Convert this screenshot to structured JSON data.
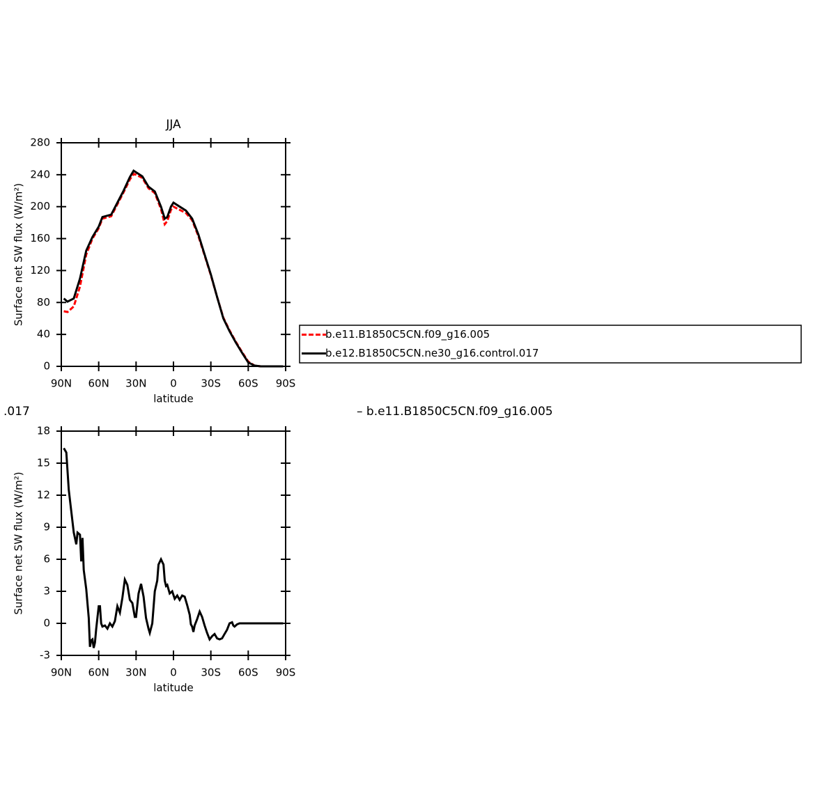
{
  "chart_data": [
    {
      "type": "line",
      "title": "JJA",
      "xlabel": "latitude",
      "ylabel": "Surface net SW flux (W/m²)",
      "x": [
        88,
        85,
        80,
        75,
        70,
        65,
        60,
        57,
        50,
        45,
        40,
        35,
        32,
        30,
        25,
        20,
        15,
        10,
        7,
        5,
        2,
        0,
        -5,
        -10,
        -15,
        -20,
        -25,
        -30,
        -35,
        -40,
        -45,
        -50,
        -55,
        -60,
        -65,
        -70,
        -80,
        -88
      ],
      "series": [
        {
          "name": "b.e11.B1850C5CN.f09_g16.005",
          "color": "#ff0000",
          "dash": true,
          "values": [
            69,
            68,
            75,
            100,
            140,
            160,
            173,
            185,
            188,
            203,
            218,
            234,
            241,
            240,
            236,
            223,
            217,
            197,
            178,
            182,
            196,
            200,
            196,
            192,
            183,
            163,
            139,
            114,
            87,
            61,
            45,
            31,
            18,
            6,
            1,
            0,
            0,
            0
          ]
        },
        {
          "name": "b.e12.B1850C5CN.ne30_g16.control.017",
          "color": "#000000",
          "dash": false,
          "values": [
            85,
            81,
            85,
            110,
            145,
            162,
            175,
            187,
            190,
            205,
            220,
            237,
            245,
            243,
            238,
            225,
            219,
            200,
            185,
            187,
            200,
            205,
            200,
            195,
            185,
            165,
            140,
            115,
            87,
            60,
            44,
            30,
            17,
            5,
            1,
            0,
            0,
            0
          ]
        }
      ],
      "xlim": [
        90,
        -90
      ],
      "xticks": [
        {
          "value": 90,
          "label": "90N"
        },
        {
          "value": 60,
          "label": "60N"
        },
        {
          "value": 30,
          "label": "30N"
        },
        0,
        {
          "value": -30,
          "label": "30S"
        },
        {
          "value": -60,
          "label": "60S"
        },
        {
          "value": -90,
          "label": "90S"
        }
      ],
      "ylim": [
        0,
        280
      ],
      "yticks": [
        0,
        40,
        80,
        120,
        160,
        200,
        240,
        280
      ],
      "legend": "right"
    },
    {
      "type": "line",
      "xlabel": "latitude",
      "ylabel": "Surface net SW flux (W/m²)",
      "color": "#000000",
      "x": [
        88,
        86,
        84,
        82,
        80,
        78,
        77,
        75,
        74,
        73,
        72,
        70,
        68,
        67,
        66,
        65,
        64,
        63,
        62,
        60,
        59,
        58,
        57,
        55,
        53,
        51,
        49,
        47,
        45,
        43,
        41,
        39,
        37,
        35,
        33,
        31,
        30,
        28,
        26,
        24,
        22,
        20,
        19,
        17,
        15,
        13,
        12,
        10,
        8,
        7,
        6,
        5,
        3,
        1,
        -1,
        -3,
        -5,
        -7,
        -9,
        -11,
        -13,
        -14,
        -15,
        -16,
        -17,
        -19,
        -21,
        -23,
        -25,
        -27,
        -29,
        -31,
        -33,
        -35,
        -37,
        -39,
        -41,
        -43,
        -45,
        -47,
        -48,
        -49,
        -51,
        -53,
        -60,
        -88
      ],
      "values": [
        16.4,
        16,
        12.5,
        10.5,
        8.5,
        7.4,
        8.5,
        8.3,
        5.8,
        8,
        5,
        3.2,
        0.5,
        -2.2,
        -1.6,
        -1.5,
        -2.3,
        -1.8,
        -0.5,
        1.6,
        1.6,
        0,
        -0.3,
        -0.2,
        -0.5,
        0,
        -0.3,
        0.2,
        1.6,
        1,
        2.4,
        4.1,
        3.6,
        2.2,
        1.9,
        0.6,
        0.6,
        2.8,
        3.7,
        2.5,
        0.5,
        -0.5,
        -0.9,
        0,
        3,
        4,
        5.5,
        6,
        5.5,
        4,
        3.5,
        3.6,
        2.8,
        3,
        2.3,
        2.6,
        2.2,
        2.6,
        2.5,
        1.7,
        0.8,
        -0.1,
        -0.3,
        -0.8,
        -0.2,
        0.4,
        1.1,
        0.6,
        -0.2,
        -0.9,
        -1.5,
        -1.2,
        -1,
        -1.4,
        -1.5,
        -1.4,
        -1,
        -0.6,
        0,
        0.1,
        -0.2,
        -0.3,
        -0.1,
        0,
        0,
        0
      ],
      "xlim": [
        90,
        -90
      ],
      "xticks": [
        {
          "value": 90,
          "label": "90N"
        },
        {
          "value": 60,
          "label": "60N"
        },
        {
          "value": 30,
          "label": "30N"
        },
        0,
        {
          "value": -30,
          "label": "30S"
        },
        {
          "value": -60,
          "label": "60S"
        },
        {
          "value": -90,
          "label": "90S"
        }
      ],
      "ylim": [
        -3,
        18
      ],
      "yticks": [
        -3,
        0,
        3,
        6,
        9,
        12,
        15,
        18
      ]
    }
  ],
  "annotations": [
    ".017",
    "– b.e11.B1850C5CN.f09_g16.005"
  ]
}
